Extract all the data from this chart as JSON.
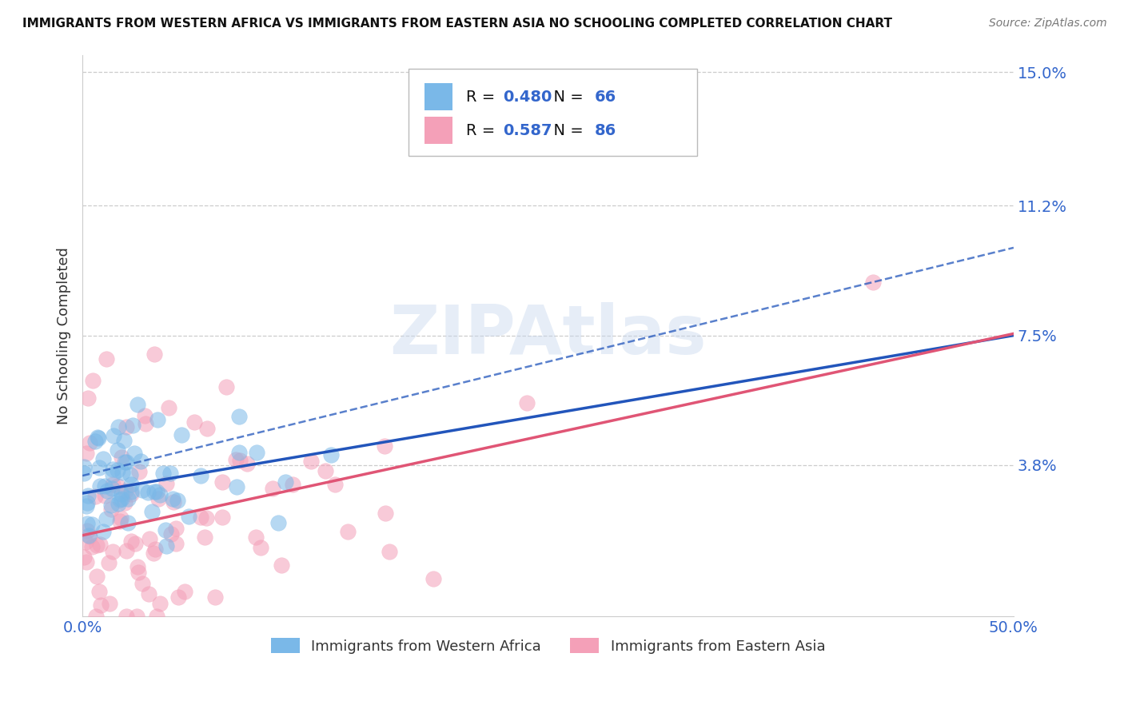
{
  "title": "IMMIGRANTS FROM WESTERN AFRICA VS IMMIGRANTS FROM EASTERN ASIA NO SCHOOLING COMPLETED CORRELATION CHART",
  "source": "Source: ZipAtlas.com",
  "ylabel": "No Schooling Completed",
  "xlim": [
    0.0,
    0.5
  ],
  "ylim": [
    -0.005,
    0.155
  ],
  "legend1_r": "0.480",
  "legend1_n": "66",
  "legend2_r": "0.587",
  "legend2_n": "86",
  "legend1_label": "Immigrants from Western Africa",
  "legend2_label": "Immigrants from Eastern Asia",
  "blue_color": "#7ab8e8",
  "pink_color": "#f4a0b8",
  "trend_blue_color": "#2255bb",
  "trend_pink_color": "#e05575",
  "r_n_color": "#3366cc",
  "title_color": "#111111",
  "source_color": "#777777",
  "axis_tick_color": "#3366cc",
  "background_color": "#ffffff",
  "ytick_vals": [
    0.038,
    0.075,
    0.112,
    0.15
  ],
  "ytick_labels": [
    "3.8%",
    "7.5%",
    "11.2%",
    "15.0%"
  ],
  "wa_intercept": 0.03,
  "wa_slope": 0.09,
  "ea_intercept": 0.018,
  "ea_slope": 0.115
}
